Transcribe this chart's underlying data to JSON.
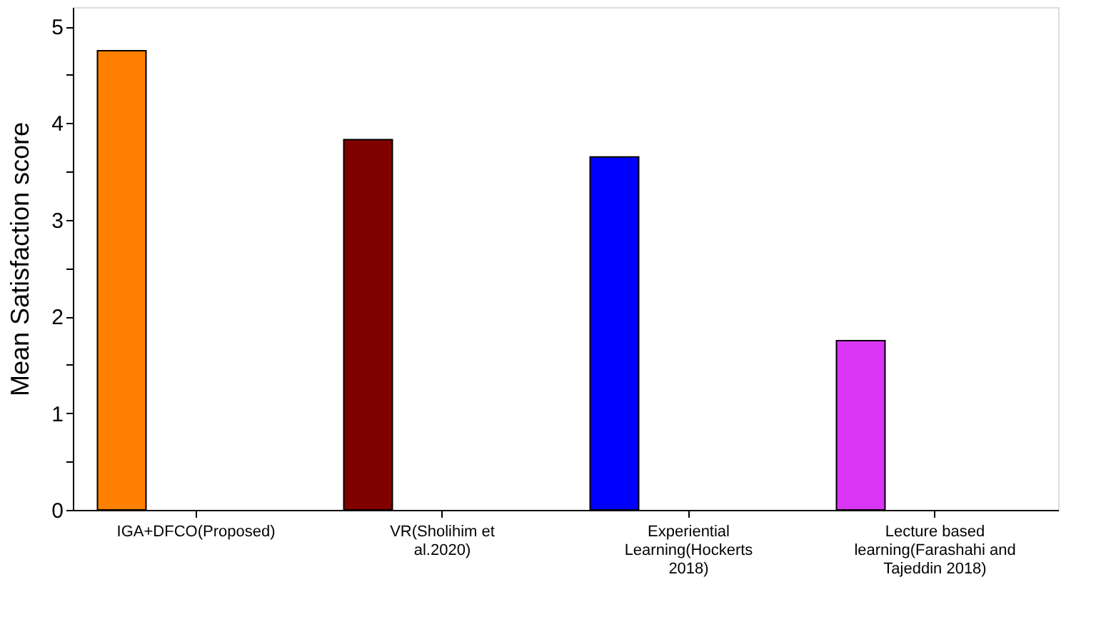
{
  "chart_data": {
    "type": "bar",
    "ylabel": "Mean Satisfaction score",
    "categories": [
      "IGA+DFCO(Proposed)",
      "VR(Sholihim et al.2020)",
      "Experiential Learning(Hockerts 2018)",
      "Lecture based learning(Farashahi and Tajeddin 2018)"
    ],
    "values": [
      4.75,
      3.83,
      3.65,
      1.75
    ],
    "colors": [
      "#ff8000",
      "#800000",
      "#0000ff",
      "#d936f5"
    ],
    "ylim": [
      0,
      5.2
    ],
    "yticks": [
      0,
      {
        "value": 0.5,
        "label": null
      },
      1,
      {
        "value": 1.5,
        "label": null
      },
      2,
      {
        "value": 2.5,
        "label": null
      },
      3,
      {
        "value": 3.5,
        "label": null
      },
      4,
      {
        "value": 4.5,
        "label": null
      },
      5
    ],
    "grid": false
  }
}
